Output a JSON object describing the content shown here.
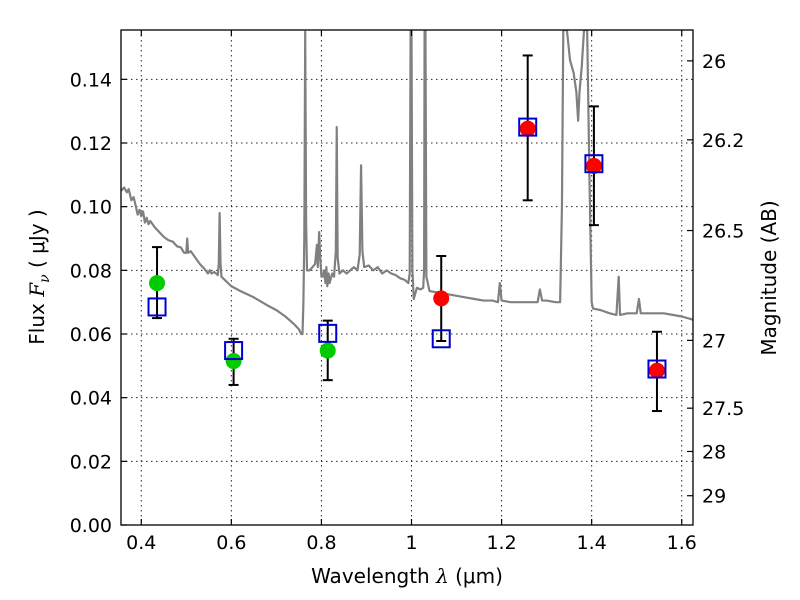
{
  "chart_data": {
    "type": "scatter",
    "xlabel": "Wavelength  λ (μm)",
    "xlabel_parts": {
      "text": "Wavelength  ",
      "symbol": "λ",
      "unit": " (μm)"
    },
    "ylabel": "Flux  Fν  ( μJy )",
    "ylabel_parts": {
      "text": "Flux  ",
      "symbol": "F",
      "sub": "ν",
      "unit": "  ( μJy )"
    },
    "y2label": "Magnitude (AB)",
    "xlim": [
      0.355,
      1.625
    ],
    "ylim": [
      0.0,
      0.1555
    ],
    "grid": true,
    "x_ticks": [
      {
        "value": 0.4,
        "label": "0.4"
      },
      {
        "value": 0.6,
        "label": "0.6"
      },
      {
        "value": 0.8,
        "label": "0.8"
      },
      {
        "value": 1.0,
        "label": "1"
      },
      {
        "value": 1.2,
        "label": "1.2"
      },
      {
        "value": 1.4,
        "label": "1.4"
      },
      {
        "value": 1.6,
        "label": "1.6"
      }
    ],
    "y_ticks": [
      {
        "value": 0.0,
        "label": "0.00"
      },
      {
        "value": 0.02,
        "label": "0.02"
      },
      {
        "value": 0.04,
        "label": "0.04"
      },
      {
        "value": 0.06,
        "label": "0.06"
      },
      {
        "value": 0.08,
        "label": "0.08"
      },
      {
        "value": 0.1,
        "label": "0.10"
      },
      {
        "value": 0.12,
        "label": "0.12"
      },
      {
        "value": 0.14,
        "label": "0.14"
      }
    ],
    "y2_ticks": [
      {
        "flux": 0.1458,
        "label": "26"
      },
      {
        "flux": 0.121,
        "label": "26.2"
      },
      {
        "flux": 0.0925,
        "label": "26.5"
      },
      {
        "flux": 0.058,
        "label": "27"
      },
      {
        "flux": 0.0367,
        "label": "27.5"
      },
      {
        "flux": 0.0231,
        "label": "28"
      },
      {
        "flux": 0.0092,
        "label": "29"
      }
    ],
    "colors": {
      "spectrum": "#808080",
      "green": "#00cc00",
      "red": "#ff0000",
      "model_box": "#0000cc",
      "error_bar": "#000000"
    },
    "spectrum": {
      "name": "",
      "points": [
        [
          0.355,
          0.105
        ],
        [
          0.362,
          0.106
        ],
        [
          0.368,
          0.1045
        ],
        [
          0.372,
          0.1055
        ],
        [
          0.378,
          0.102
        ],
        [
          0.383,
          0.103
        ],
        [
          0.388,
          0.1
        ],
        [
          0.392,
          0.0975
        ],
        [
          0.396,
          0.099
        ],
        [
          0.4,
          0.097
        ],
        [
          0.404,
          0.0985
        ],
        [
          0.408,
          0.095
        ],
        [
          0.412,
          0.0965
        ],
        [
          0.416,
          0.0945
        ],
        [
          0.42,
          0.0955
        ],
        [
          0.43,
          0.0935
        ],
        [
          0.44,
          0.092
        ],
        [
          0.45,
          0.0905
        ],
        [
          0.46,
          0.0895
        ],
        [
          0.47,
          0.089
        ],
        [
          0.48,
          0.0875
        ],
        [
          0.488,
          0.0872
        ],
        [
          0.495,
          0.0855
        ],
        [
          0.5,
          0.0855
        ],
        [
          0.502,
          0.09
        ],
        [
          0.504,
          0.0855
        ],
        [
          0.51,
          0.086
        ],
        [
          0.52,
          0.084
        ],
        [
          0.53,
          0.082
        ],
        [
          0.54,
          0.0805
        ],
        [
          0.548,
          0.079
        ],
        [
          0.552,
          0.08
        ],
        [
          0.556,
          0.079
        ],
        [
          0.562,
          0.0795
        ],
        [
          0.57,
          0.0785
        ],
        [
          0.572,
          0.082
        ],
        [
          0.574,
          0.098
        ],
        [
          0.576,
          0.082
        ],
        [
          0.578,
          0.078
        ],
        [
          0.6,
          0.075
        ],
        [
          0.62,
          0.0735
        ],
        [
          0.65,
          0.0715
        ],
        [
          0.68,
          0.069
        ],
        [
          0.7,
          0.0675
        ],
        [
          0.72,
          0.0655
        ],
        [
          0.74,
          0.063
        ],
        [
          0.75,
          0.0615
        ],
        [
          0.755,
          0.06
        ],
        [
          0.758,
          0.06
        ],
        [
          0.76,
          0.07
        ],
        [
          0.762,
          0.09
        ],
        [
          0.764,
          0.155
        ],
        [
          0.766,
          0.095
        ],
        [
          0.768,
          0.08
        ],
        [
          0.774,
          0.08
        ],
        [
          0.78,
          0.081
        ],
        [
          0.786,
          0.082
        ],
        [
          0.79,
          0.088
        ],
        [
          0.792,
          0.081
        ],
        [
          0.795,
          0.092
        ],
        [
          0.797,
          0.085
        ],
        [
          0.8,
          0.078
        ],
        [
          0.803,
          0.078
        ],
        [
          0.806,
          0.08
        ],
        [
          0.809,
          0.076
        ],
        [
          0.811,
          0.081
        ],
        [
          0.813,
          0.075
        ],
        [
          0.816,
          0.079
        ],
        [
          0.818,
          0.076
        ],
        [
          0.821,
          0.0775
        ],
        [
          0.824,
          0.079
        ],
        [
          0.828,
          0.078
        ],
        [
          0.832,
          0.086
        ],
        [
          0.834,
          0.125
        ],
        [
          0.836,
          0.084
        ],
        [
          0.84,
          0.079
        ],
        [
          0.848,
          0.08
        ],
        [
          0.856,
          0.079
        ],
        [
          0.864,
          0.08
        ],
        [
          0.872,
          0.081
        ],
        [
          0.88,
          0.08
        ],
        [
          0.885,
          0.085
        ],
        [
          0.888,
          0.113
        ],
        [
          0.891,
          0.086
        ],
        [
          0.895,
          0.081
        ],
        [
          0.905,
          0.0815
        ],
        [
          0.915,
          0.08
        ],
        [
          0.925,
          0.081
        ],
        [
          0.935,
          0.079
        ],
        [
          0.945,
          0.08
        ],
        [
          0.955,
          0.079
        ],
        [
          0.965,
          0.0785
        ],
        [
          0.975,
          0.0775
        ],
        [
          0.985,
          0.077
        ],
        [
          0.993,
          0.076
        ],
        [
          0.996,
          0.079
        ],
        [
          0.998,
          0.1555
        ],
        [
          1.0,
          0.1555
        ],
        [
          1.002,
          0.08
        ],
        [
          1.005,
          0.071
        ],
        [
          1.012,
          0.0745
        ],
        [
          1.02,
          0.074
        ],
        [
          1.026,
          0.0745
        ],
        [
          1.028,
          0.08
        ],
        [
          1.029,
          0.1555
        ],
        [
          1.031,
          0.1555
        ],
        [
          1.033,
          0.078
        ],
        [
          1.04,
          0.0735
        ],
        [
          1.06,
          0.073
        ],
        [
          1.08,
          0.0725
        ],
        [
          1.1,
          0.072
        ],
        [
          1.12,
          0.0715
        ],
        [
          1.14,
          0.071
        ],
        [
          1.16,
          0.0705
        ],
        [
          1.18,
          0.0705
        ],
        [
          1.192,
          0.07
        ],
        [
          1.196,
          0.076
        ],
        [
          1.2,
          0.0705
        ],
        [
          1.22,
          0.07
        ],
        [
          1.24,
          0.07
        ],
        [
          1.26,
          0.07
        ],
        [
          1.28,
          0.07
        ],
        [
          1.285,
          0.074
        ],
        [
          1.29,
          0.0705
        ],
        [
          1.3,
          0.0705
        ],
        [
          1.32,
          0.07
        ],
        [
          1.33,
          0.07
        ],
        [
          1.334,
          0.1
        ],
        [
          1.337,
          0.1555
        ],
        [
          1.345,
          0.1555
        ],
        [
          1.352,
          0.146
        ],
        [
          1.36,
          0.142
        ],
        [
          1.366,
          0.136
        ],
        [
          1.37,
          0.127
        ],
        [
          1.373,
          0.136
        ],
        [
          1.378,
          0.144
        ],
        [
          1.383,
          0.1555
        ],
        [
          1.39,
          0.1555
        ],
        [
          1.395,
          0.11
        ],
        [
          1.4,
          0.07
        ],
        [
          1.403,
          0.068
        ],
        [
          1.42,
          0.0675
        ],
        [
          1.44,
          0.0665
        ],
        [
          1.455,
          0.066
        ],
        [
          1.46,
          0.078
        ],
        [
          1.463,
          0.066
        ],
        [
          1.48,
          0.0665
        ],
        [
          1.5,
          0.0665
        ],
        [
          1.505,
          0.071
        ],
        [
          1.509,
          0.0665
        ],
        [
          1.53,
          0.0665
        ],
        [
          1.56,
          0.0665
        ],
        [
          1.6,
          0.0655
        ],
        [
          1.625,
          0.0645
        ]
      ]
    },
    "green_points": [
      {
        "x": 0.435,
        "y": 0.076
      },
      {
        "x": 0.605,
        "y": 0.0515
      },
      {
        "x": 0.814,
        "y": 0.0548
      }
    ],
    "red_points": [
      {
        "x": 1.066,
        "y": 0.0712
      },
      {
        "x": 1.258,
        "y": 0.1245
      },
      {
        "x": 1.405,
        "y": 0.1128
      },
      {
        "x": 1.545,
        "y": 0.0485
      }
    ],
    "model_boxes": [
      {
        "x": 0.435,
        "y": 0.0685
      },
      {
        "x": 0.605,
        "y": 0.0548
      },
      {
        "x": 0.814,
        "y": 0.0602
      },
      {
        "x": 1.066,
        "y": 0.0585
      },
      {
        "x": 1.258,
        "y": 0.125
      },
      {
        "x": 1.405,
        "y": 0.1135
      },
      {
        "x": 1.545,
        "y": 0.049
      }
    ],
    "error_bars": [
      {
        "x": 0.435,
        "low": 0.065,
        "high": 0.0873
      },
      {
        "x": 0.605,
        "low": 0.044,
        "high": 0.0585
      },
      {
        "x": 0.814,
        "low": 0.0455,
        "high": 0.0642
      },
      {
        "x": 1.066,
        "low": 0.0578,
        "high": 0.0845
      },
      {
        "x": 1.258,
        "low": 0.102,
        "high": 0.1475
      },
      {
        "x": 1.405,
        "low": 0.0942,
        "high": 0.1315
      },
      {
        "x": 1.545,
        "low": 0.0358,
        "high": 0.0607
      }
    ]
  }
}
